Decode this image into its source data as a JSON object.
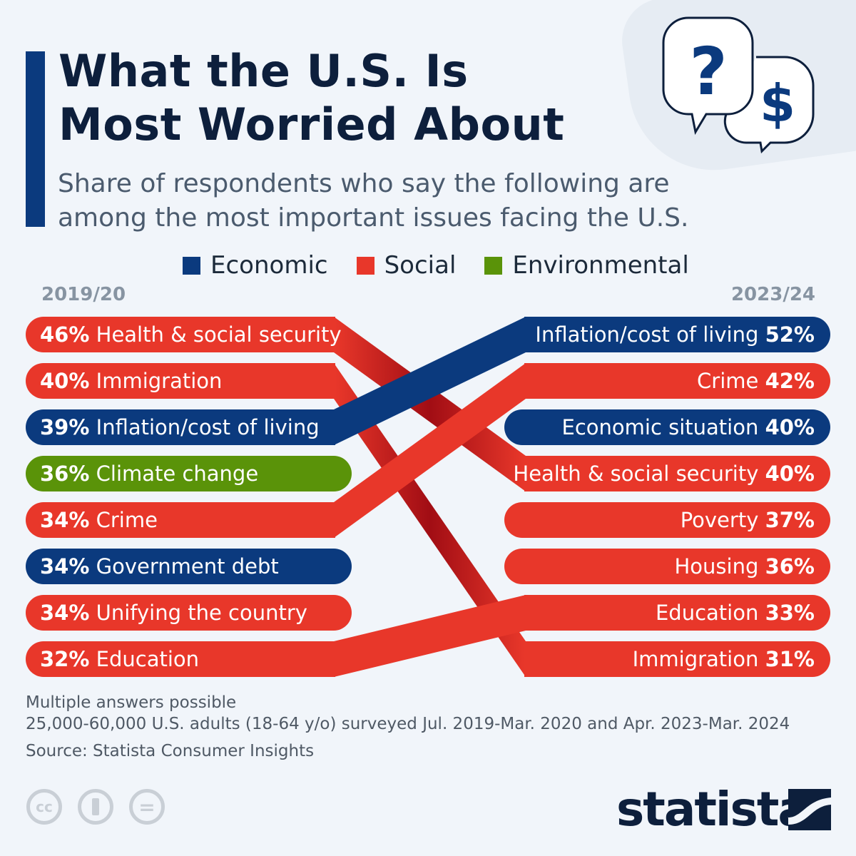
{
  "title_line1": "What the U.S. Is",
  "title_line2": "Most Worried About",
  "subtitle_line1": "Share of respondents who say the following are",
  "subtitle_line2": "among the most important issues facing the U.S.",
  "icons": [
    "question-speech-bubble-icon",
    "dollar-speech-bubble-icon"
  ],
  "colors": {
    "Economic": "#0b3a7e",
    "Social": "#e8372a",
    "Environmental": "#5a9309",
    "background": "#f1f5fa"
  },
  "chart_data": {
    "type": "slope",
    "legend": {
      "position": "top",
      "entries": [
        "Economic",
        "Social",
        "Environmental"
      ]
    },
    "periods": [
      "2019/20",
      "2023/24"
    ],
    "left": [
      {
        "label": "Health & social security",
        "value": 46,
        "pct": "46%",
        "category": "Social"
      },
      {
        "label": "Immigration",
        "value": 40,
        "pct": "40%",
        "category": "Social"
      },
      {
        "label": "Inflation/cost of living",
        "value": 39,
        "pct": "39%",
        "category": "Economic"
      },
      {
        "label": "Climate change",
        "value": 36,
        "pct": "36%",
        "category": "Environmental"
      },
      {
        "label": "Crime",
        "value": 34,
        "pct": "34%",
        "category": "Social"
      },
      {
        "label": "Government debt",
        "value": 34,
        "pct": "34%",
        "category": "Economic"
      },
      {
        "label": "Unifying the country",
        "value": 34,
        "pct": "34%",
        "category": "Social"
      },
      {
        "label": "Education",
        "value": 32,
        "pct": "32%",
        "category": "Social"
      }
    ],
    "right": [
      {
        "label": "Inflation/cost of living",
        "value": 52,
        "pct": "52%",
        "category": "Economic"
      },
      {
        "label": "Crime",
        "value": 42,
        "pct": "42%",
        "category": "Social"
      },
      {
        "label": "Economic situation",
        "value": 40,
        "pct": "40%",
        "category": "Economic"
      },
      {
        "label": "Health & social security",
        "value": 40,
        "pct": "40%",
        "category": "Social"
      },
      {
        "label": "Poverty",
        "value": 37,
        "pct": "37%",
        "category": "Social"
      },
      {
        "label": "Housing",
        "value": 36,
        "pct": "36%",
        "category": "Social"
      },
      {
        "label": "Education",
        "value": 33,
        "pct": "33%",
        "category": "Social"
      },
      {
        "label": "Immigration",
        "value": 31,
        "pct": "31%",
        "category": "Social"
      }
    ]
  },
  "footer": {
    "note1": "Multiple answers possible",
    "note2": "25,000-60,000 U.S. adults (18-64 y/o) surveyed Jul. 2019-Mar. 2020 and Apr. 2023-Mar. 2024",
    "source": "Source: Statista Consumer Insights",
    "license_icons": [
      "cc-icon",
      "attribution-icon",
      "no-derivatives-icon"
    ],
    "logo": "statista"
  }
}
